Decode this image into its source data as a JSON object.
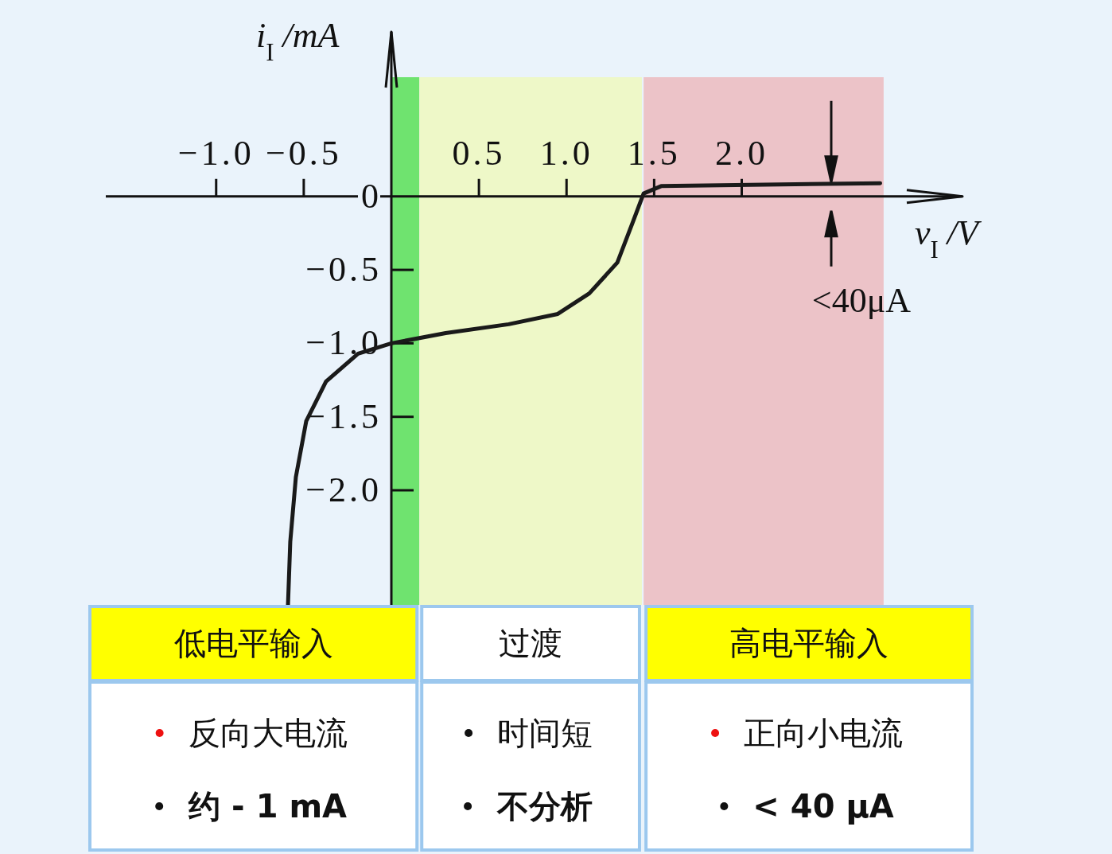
{
  "chart_data": {
    "type": "line",
    "xlabel": "v$_{I}$ /V",
    "ylabel": "i$_{I}$ /mA",
    "xlim": [
      -1.63,
      3.26
    ],
    "ylim": [
      -2.78,
      1.12
    ],
    "xticks": [
      {
        "value": -1,
        "label": "−1.0"
      },
      {
        "value": -0.5,
        "label": "−0.5"
      },
      {
        "value": 0.5,
        "label": "0.5"
      },
      {
        "value": 1,
        "label": "1.0"
      },
      {
        "value": 1.5,
        "label": "1.5"
      },
      {
        "value": 2,
        "label": "2.0"
      }
    ],
    "yticks": [
      {
        "value": 0,
        "label": "0"
      },
      {
        "value": -0.5,
        "label": "−0.5"
      },
      {
        "value": -1,
        "label": "−1.0"
      },
      {
        "value": -1.5,
        "label": "−1.5"
      },
      {
        "value": -2,
        "label": "−2.0"
      }
    ],
    "x": [
      -0.59,
      -0.577,
      -0.545,
      -0.486,
      -0.373,
      -0.19,
      0,
      0.31,
      0.67,
      0.95,
      1.13,
      1.29,
      1.38,
      1.44,
      1.54,
      2.79
    ],
    "series": [
      {
        "color": "#1a1a1a",
        "values": [
          -2.78,
          -2.35,
          -1.91,
          -1.53,
          -1.26,
          -1.07,
          -1.0,
          -0.93,
          -0.87,
          -0.8,
          -0.66,
          -0.45,
          -0.17,
          0.02,
          0.07,
          0.09
        ]
      }
    ],
    "bands": [
      {
        "axis": "x",
        "from": 0,
        "to": 0.16,
        "label": "低电平输入",
        "color": "#6fe36f"
      },
      {
        "axis": "x",
        "from": 0.16,
        "to": 1.43,
        "label": "过渡",
        "color": "#eef8c8"
      },
      {
        "axis": "x",
        "from": 1.44,
        "to": 2.81,
        "label": "高电平输入",
        "color": "#ecc3c8"
      }
    ],
    "annotations": [
      "<40μA",
      "反向大电流",
      "约 - 1 mA",
      "时间短",
      "不分析",
      "正向小电流",
      "< 40 μA"
    ]
  }
}
